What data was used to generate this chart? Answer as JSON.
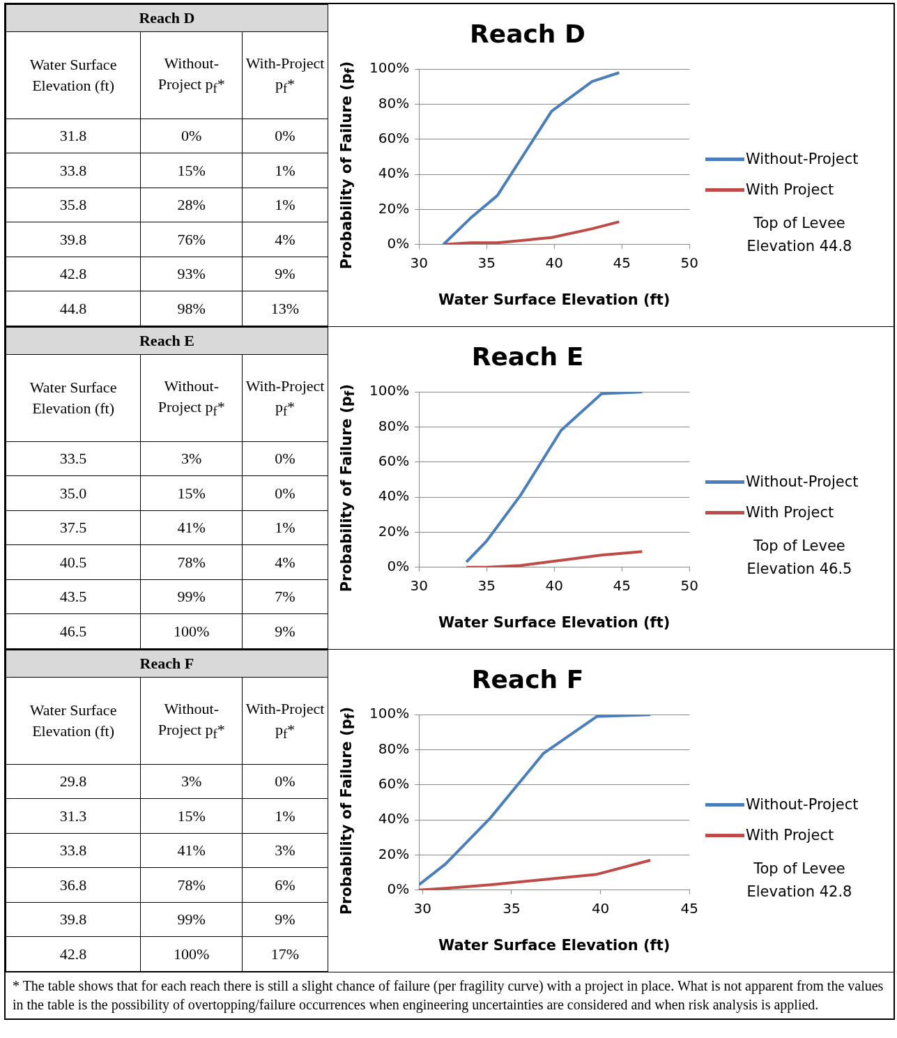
{
  "chart_data": [
    {
      "type": "line",
      "title": "Reach D",
      "xlabel": "Water Surface Elevation (ft)",
      "ylabel": "Probability of Failure (p$_{f}$)",
      "x": [
        31.8,
        33.8,
        35.8,
        39.8,
        42.8,
        44.8
      ],
      "xlim": [
        30,
        50
      ],
      "xticks": [
        30,
        35,
        40,
        45,
        50
      ],
      "ylim": [
        0,
        100
      ],
      "yticks": [
        {
          "value": 0,
          "label": "0%"
        },
        {
          "value": 20,
          "label": "20%"
        },
        {
          "value": 40,
          "label": "40%"
        },
        {
          "value": 60,
          "label": "60%"
        },
        {
          "value": 80,
          "label": "80%"
        },
        {
          "value": 100,
          "label": "100%"
        }
      ],
      "grid": "y",
      "legend": "right",
      "marker": "none",
      "line_style": "solid",
      "series": [
        {
          "name": "Without-Project",
          "color": "#4a7ebb",
          "values": [
            0,
            15,
            28,
            76,
            93,
            98
          ]
        },
        {
          "name": "With Project",
          "color": "#be4b48",
          "values": [
            0,
            1,
            1,
            4,
            9,
            13
          ]
        }
      ],
      "annotations": [
        "Reach D",
        "Water Surface Elevation (ft)",
        "Without-Project p$_{f}$*",
        "With-Project p$_{f}$*",
        "31.8",
        "0%",
        "0%",
        "33.8",
        "15%",
        "1%",
        "35.8",
        "28%",
        "1%",
        "39.8",
        "76%",
        "4%",
        "42.8",
        "93%",
        "9%",
        "44.8",
        "98%",
        "13%",
        "Top of Levee Elevation 44.8"
      ]
    },
    {
      "type": "line",
      "title": "Reach E",
      "xlabel": "Water Surface Elevation (ft)",
      "ylabel": "Probability of Failure (p$_{f}$)",
      "x": [
        33.5,
        35.0,
        37.5,
        40.5,
        43.5,
        46.5
      ],
      "xlim": [
        30,
        50
      ],
      "xticks": [
        30,
        35,
        40,
        45,
        50
      ],
      "ylim": [
        0,
        100
      ],
      "yticks": [
        {
          "value": 0,
          "label": "0%"
        },
        {
          "value": 20,
          "label": "20%"
        },
        {
          "value": 40,
          "label": "40%"
        },
        {
          "value": 60,
          "label": "60%"
        },
        {
          "value": 80,
          "label": "80%"
        },
        {
          "value": 100,
          "label": "100%"
        }
      ],
      "grid": "y",
      "legend": "right",
      "marker": "none",
      "line_style": "solid",
      "series": [
        {
          "name": "Without-Project",
          "color": "#4a7ebb",
          "values": [
            3,
            15,
            41,
            78,
            99,
            100
          ]
        },
        {
          "name": "With Project",
          "color": "#be4b48",
          "values": [
            0,
            0,
            1,
            4,
            7,
            9
          ]
        }
      ],
      "annotations": [
        "Reach E",
        "Water Surface Elevation (ft)",
        "Without-Project p$_{f}$*",
        "With-Project p$_{f}$*",
        "33.5",
        "3%",
        "0%",
        "35.0",
        "15%",
        "0%",
        "37.5",
        "41%",
        "1%",
        "40.5",
        "78%",
        "4%",
        "43.5",
        "99%",
        "7%",
        "46.5",
        "100%",
        "9%",
        "Top of Levee Elevation 46.5"
      ]
    },
    {
      "type": "line",
      "title": "Reach F",
      "xlabel": "Water Surface Elevation (ft)",
      "ylabel": "Probability of Failure (p$_{f}$)",
      "x": [
        29.8,
        31.3,
        33.8,
        36.8,
        39.8,
        42.8
      ],
      "xlim": [
        29.8,
        45
      ],
      "xticks": [
        30,
        35,
        40,
        45
      ],
      "ylim": [
        0,
        100
      ],
      "yticks": [
        {
          "value": 0,
          "label": "0%"
        },
        {
          "value": 20,
          "label": "20%"
        },
        {
          "value": 40,
          "label": "40%"
        },
        {
          "value": 60,
          "label": "60%"
        },
        {
          "value": 80,
          "label": "80%"
        },
        {
          "value": 100,
          "label": "100%"
        }
      ],
      "grid": "y",
      "legend": "right",
      "marker": "none",
      "line_style": "solid",
      "series": [
        {
          "name": "Without-Project",
          "color": "#4a7ebb",
          "values": [
            3,
            15,
            41,
            78,
            99,
            100
          ]
        },
        {
          "name": "With Project",
          "color": "#be4b48",
          "values": [
            0,
            1,
            3,
            6,
            9,
            17
          ]
        }
      ],
      "annotations": [
        "Reach F",
        "Water Surface Elevation (ft)",
        "Without-Project p$_{f}$*",
        "With-Project p$_{f}$*",
        "29.8",
        "3%",
        "0%",
        "31.3",
        "15%",
        "1%",
        "33.8",
        "41%",
        "3%",
        "36.8",
        "78%",
        "6%",
        "39.8",
        "99%",
        "9%",
        "42.8",
        "100%",
        "17%",
        "Top of Levee Elevation 42.8",
        "* The table shows that for each reach there is still a slight chance of failure (per fragility curve) with a project in place. What is not apparent from the values in the table is the possibility of overtopping/failure occurrences when engineering uncertainties are considered and when risk analysis is applied."
      ]
    }
  ]
}
